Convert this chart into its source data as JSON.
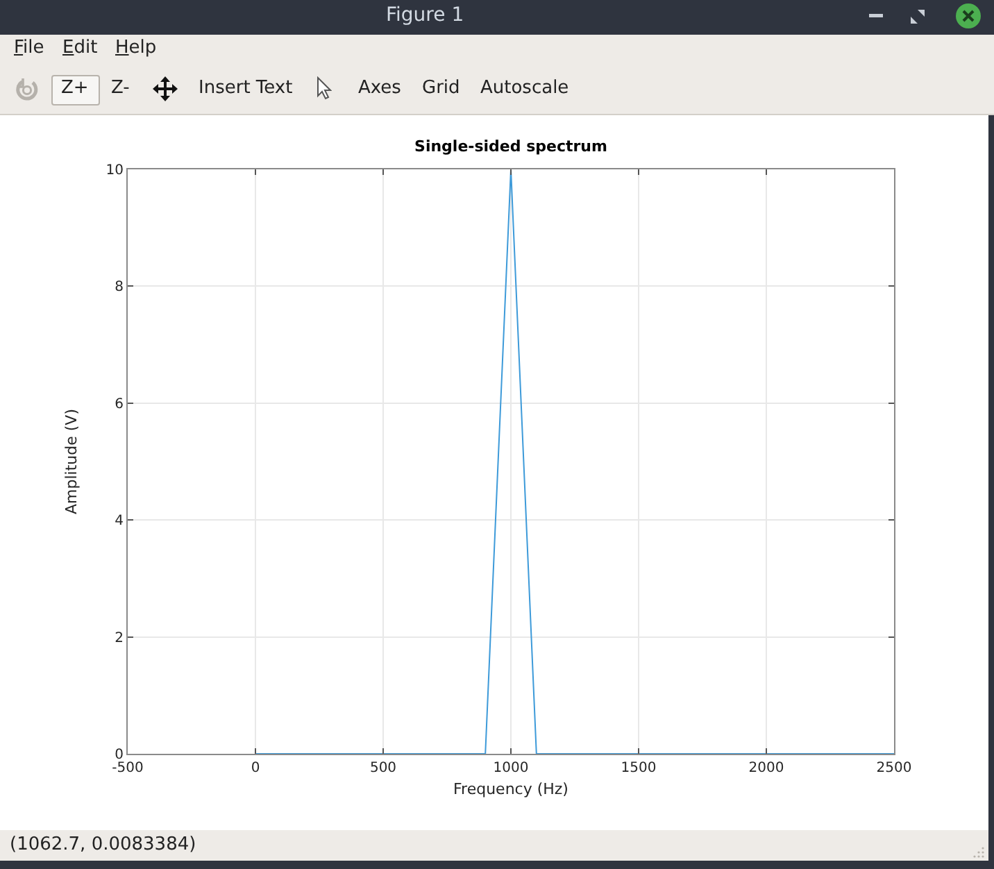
{
  "chart_data": {
    "type": "line",
    "title": "Single-sided spectrum",
    "xlabel": "Frequency (Hz)",
    "ylabel": "Amplitude (V)",
    "x": [
      0,
      100,
      200,
      300,
      400,
      500,
      600,
      700,
      800,
      900,
      1000,
      1100,
      1200,
      1300,
      1400,
      1500,
      1600,
      1700,
      1800,
      1900,
      2000,
      2100,
      2200,
      2300,
      2400,
      2500
    ],
    "values": [
      0,
      0,
      0,
      0,
      0,
      0,
      0,
      0,
      0,
      0,
      10,
      0,
      0,
      0,
      0,
      0,
      0,
      0,
      0,
      0,
      0,
      0,
      0,
      0,
      0,
      0
    ],
    "color": "#3d9ad9",
    "xlim": [
      -500,
      2500
    ],
    "xticks": [
      -500,
      0,
      500,
      1000,
      1500,
      2000,
      2500
    ],
    "ylim": [
      0,
      10
    ],
    "yticks": [
      0,
      2,
      4,
      6,
      8,
      10
    ],
    "grid": true,
    "annotations": [
      "Figure 1",
      "File",
      "Edit",
      "Help",
      "Z+",
      "Z-",
      "Insert Text",
      "Axes",
      "Grid",
      "Autoscale",
      "(1062.7, 0.0083384)"
    ]
  }
}
